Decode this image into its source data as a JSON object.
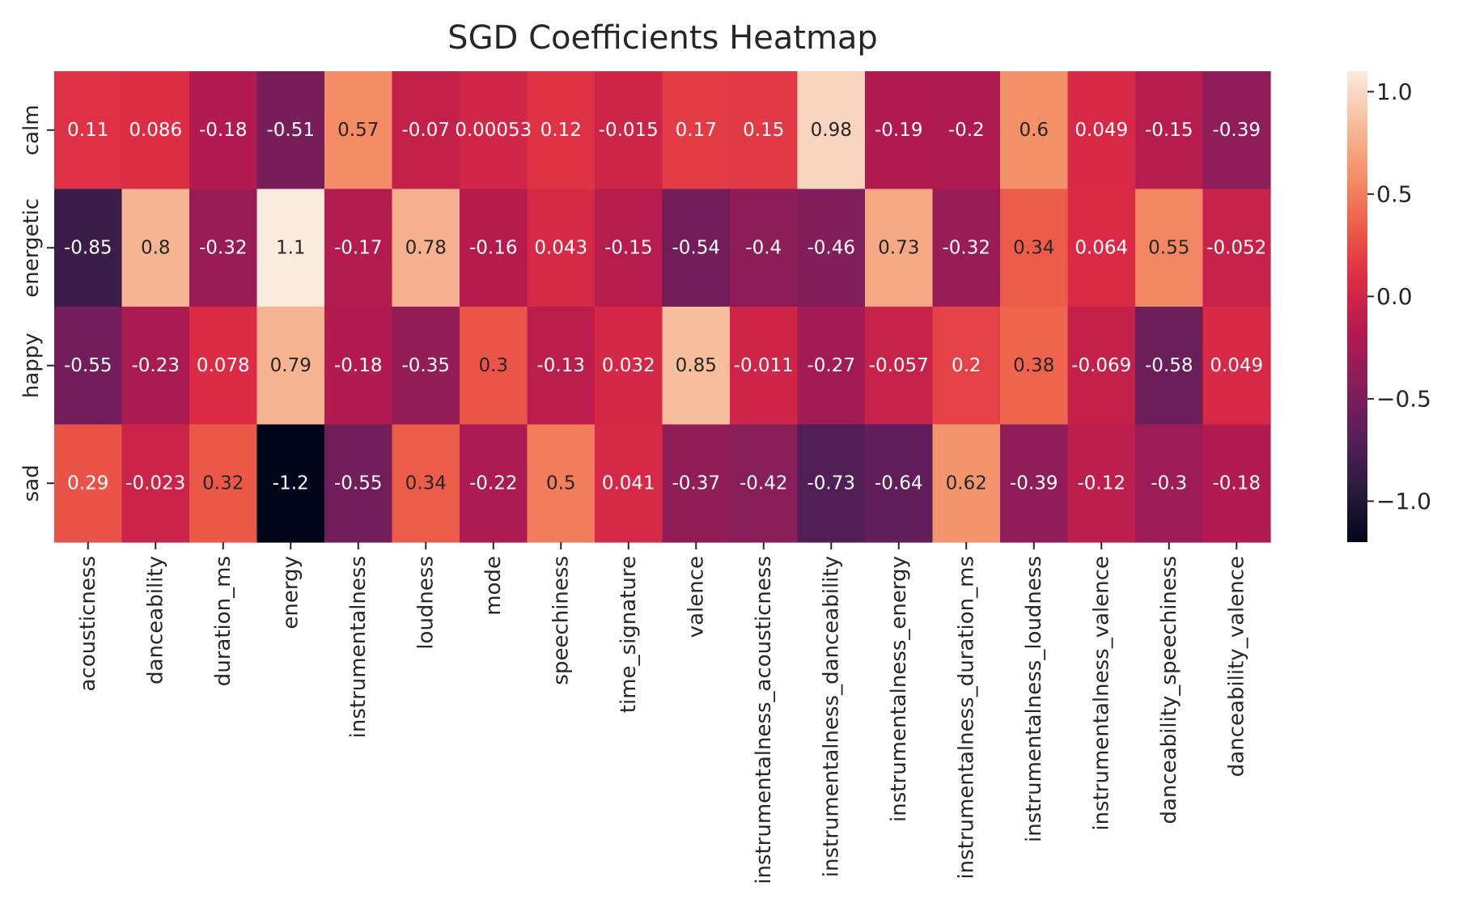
{
  "chart_data": {
    "type": "heatmap",
    "title": "SGD Coefficients Heatmap",
    "xlabel": "",
    "ylabel": "",
    "rows": [
      "calm",
      "energetic",
      "happy",
      "sad"
    ],
    "columns": [
      "acousticness",
      "danceability",
      "duration_ms",
      "energy",
      "instrumentalness",
      "loudness",
      "mode",
      "speechiness",
      "time_signature",
      "valence",
      "instrumentalness_acousticness",
      "instrumentalness_danceability",
      "instrumentalness_energy",
      "instrumentalness_duration_ms",
      "instrumentalness_loudness",
      "instrumentalness_valence",
      "danceability_speechiness",
      "danceability_valence"
    ],
    "values": [
      [
        0.11,
        0.086,
        -0.18,
        -0.51,
        0.57,
        -0.07,
        0.00053,
        0.12,
        -0.015,
        0.17,
        0.15,
        0.98,
        -0.19,
        -0.2,
        0.6,
        0.049,
        -0.15,
        -0.39
      ],
      [
        -0.85,
        0.8,
        -0.32,
        1.1,
        -0.17,
        0.78,
        -0.16,
        0.043,
        -0.15,
        -0.54,
        -0.4,
        -0.46,
        0.73,
        -0.32,
        0.34,
        0.064,
        0.55,
        -0.052
      ],
      [
        -0.55,
        -0.23,
        0.078,
        0.79,
        -0.18,
        -0.35,
        0.3,
        -0.13,
        0.032,
        0.85,
        -0.011,
        -0.27,
        -0.057,
        0.2,
        0.38,
        -0.069,
        -0.58,
        0.049
      ],
      [
        0.29,
        -0.023,
        0.32,
        -1.2,
        -0.55,
        0.34,
        -0.22,
        0.5,
        0.041,
        -0.37,
        -0.42,
        -0.73,
        -0.64,
        0.62,
        -0.39,
        -0.12,
        -0.3,
        -0.18
      ]
    ],
    "labels": [
      [
        "0.11",
        "0.086",
        "-0.18",
        "-0.51",
        "0.57",
        "-0.07",
        "0.00053",
        "0.12",
        "-0.015",
        "0.17",
        "0.15",
        "0.98",
        "-0.19",
        "-0.2",
        "0.6",
        "0.049",
        "-0.15",
        "-0.39"
      ],
      [
        "-0.85",
        "0.8",
        "-0.32",
        "1.1",
        "-0.17",
        "0.78",
        "-0.16",
        "0.043",
        "-0.15",
        "-0.54",
        "-0.4",
        "-0.46",
        "0.73",
        "-0.32",
        "0.34",
        "0.064",
        "0.55",
        "-0.052"
      ],
      [
        "-0.55",
        "-0.23",
        "0.078",
        "0.79",
        "-0.18",
        "-0.35",
        "0.3",
        "-0.13",
        "0.032",
        "0.85",
        "-0.011",
        "-0.27",
        "-0.057",
        "0.2",
        "0.38",
        "-0.069",
        "-0.58",
        "0.049"
      ],
      [
        "0.29",
        "-0.023",
        "0.32",
        "-1.2",
        "-0.55",
        "0.34",
        "-0.22",
        "0.5",
        "0.041",
        "-0.37",
        "-0.42",
        "-0.73",
        "-0.64",
        "0.62",
        "-0.39",
        "-0.12",
        "-0.3",
        "-0.18"
      ]
    ],
    "colorbar": {
      "vmin": -1.2,
      "vmax": 1.1,
      "ticks": [
        1.0,
        0.5,
        0.0,
        -0.5,
        -1.0
      ],
      "tick_labels": [
        "1.0",
        "0.5",
        "0.0",
        "−0.5",
        "−1.0"
      ]
    },
    "colormap": [
      "#03051a",
      "#2b1b3f",
      "#581e5b",
      "#861e5b",
      "#b31a4f",
      "#dc2b44",
      "#ed5b48",
      "#f38f66",
      "#f6bd9b",
      "#faebdd"
    ]
  }
}
